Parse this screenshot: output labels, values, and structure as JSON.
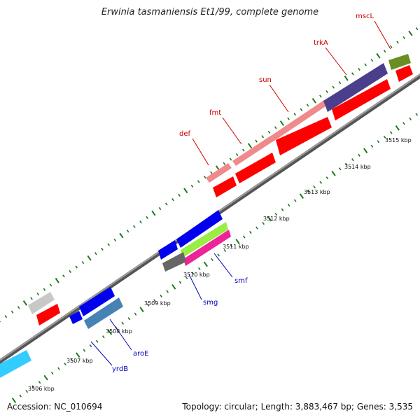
{
  "header": {
    "title": "Erwinia tasmaniensis Et1/99, complete genome"
  },
  "footer": {
    "accession": "Accession: NC_010694",
    "summary": "Topology: circular; Length: 3,883,467 bp; Genes: 3,535"
  },
  "map": {
    "tick_labels": [
      {
        "label": "3506 kbp",
        "kbp": 3506
      },
      {
        "label": "3507 kbp",
        "kbp": 3507
      },
      {
        "label": "3508 kbp",
        "kbp": 3508
      },
      {
        "label": "3509 kbp",
        "kbp": 3509
      },
      {
        "label": "3510 kbp",
        "kbp": 3510
      },
      {
        "label": "3511 kbp",
        "kbp": 3511
      },
      {
        "label": "3512 kbp",
        "kbp": 3512
      },
      {
        "label": "3513 kbp",
        "kbp": 3513
      },
      {
        "label": "3514 kbp",
        "kbp": 3514
      },
      {
        "label": "3515 kbp",
        "kbp": 3515
      }
    ],
    "gene_labels_forward": [
      {
        "name": "def",
        "color": "#cc0000"
      },
      {
        "name": "fmt",
        "color": "#cc0000"
      },
      {
        "name": "sun",
        "color": "#cc0000"
      },
      {
        "name": "trkA",
        "color": "#cc0000"
      },
      {
        "name": "mscL",
        "color": "#cc0000"
      }
    ],
    "gene_labels_reverse": [
      {
        "name": "smf",
        "color": "#0000bb"
      },
      {
        "name": "smg",
        "color": "#0000bb"
      },
      {
        "name": "aroE",
        "color": "#0000bb"
      },
      {
        "name": "yrdB",
        "color": "#0000bb"
      }
    ],
    "colors": {
      "backbone": "#808080",
      "tick": "#1a7a1a",
      "cds": "#ff0000",
      "cds_forward_gene": "#f08a8a",
      "cds_reverse_gene": "#0000ee",
      "trkA_gene": "#4b3f8c",
      "mscL_gene": "#6b8e23",
      "cyan_gene": "#33ccff",
      "steelblue_gene": "#4682b4",
      "lime_gene": "#99ee44",
      "magenta_gene": "#ee2299",
      "gray_gene": "#666666",
      "lightgray_gene": "#c8c8c8"
    }
  }
}
